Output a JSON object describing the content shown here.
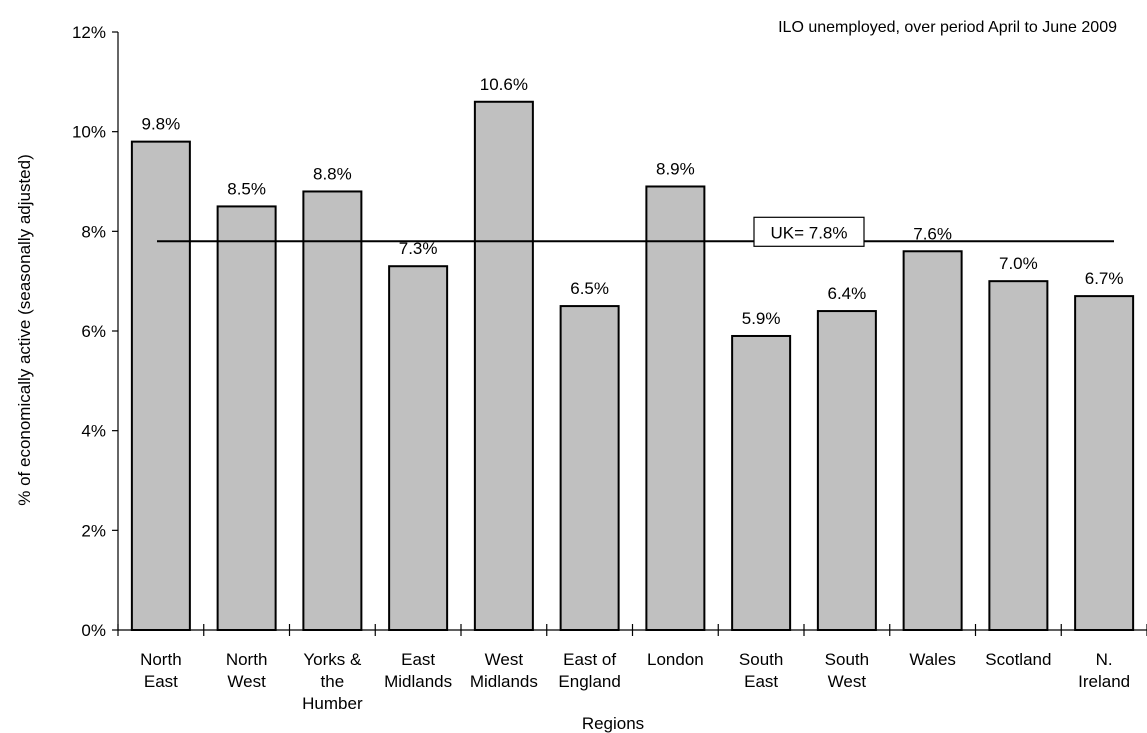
{
  "chart_data": {
    "type": "bar",
    "title": "ILO unemployed, over period April to June 2009",
    "xlabel": "Regions",
    "ylabel": "% of economically active (seasonally adjusted)",
    "ylim": [
      0,
      12
    ],
    "y_ticks": [
      "0%",
      "2%",
      "4%",
      "6%",
      "8%",
      "10%",
      "12%"
    ],
    "y_tick_values": [
      0,
      2,
      4,
      6,
      8,
      10,
      12
    ],
    "categories": [
      [
        "North",
        "East"
      ],
      [
        "North",
        "West"
      ],
      [
        "Yorks &",
        "the",
        "Humber"
      ],
      [
        "East",
        "Midlands"
      ],
      [
        "West",
        "Midlands"
      ],
      [
        "East of",
        "England"
      ],
      [
        "London"
      ],
      [
        "South",
        "East"
      ],
      [
        "South",
        "West"
      ],
      [
        "Wales"
      ],
      [
        "Scotland"
      ],
      [
        "N.",
        "Ireland"
      ]
    ],
    "values": [
      9.8,
      8.5,
      8.8,
      7.3,
      10.6,
      6.5,
      8.9,
      5.9,
      6.4,
      7.6,
      7.0,
      6.7
    ],
    "data_labels": [
      "9.8%",
      "8.5%",
      "8.8%",
      "7.3%",
      "10.6%",
      "6.5%",
      "8.9%",
      "5.9%",
      "6.4%",
      "7.6%",
      "7.0%",
      "6.7%"
    ],
    "reference_line": {
      "value": 7.8,
      "label": "UK= 7.8%"
    },
    "grid": false,
    "colors": {
      "bar_fill": "#c0c0c0",
      "bar_stroke": "#000000",
      "line": "#000000"
    }
  }
}
